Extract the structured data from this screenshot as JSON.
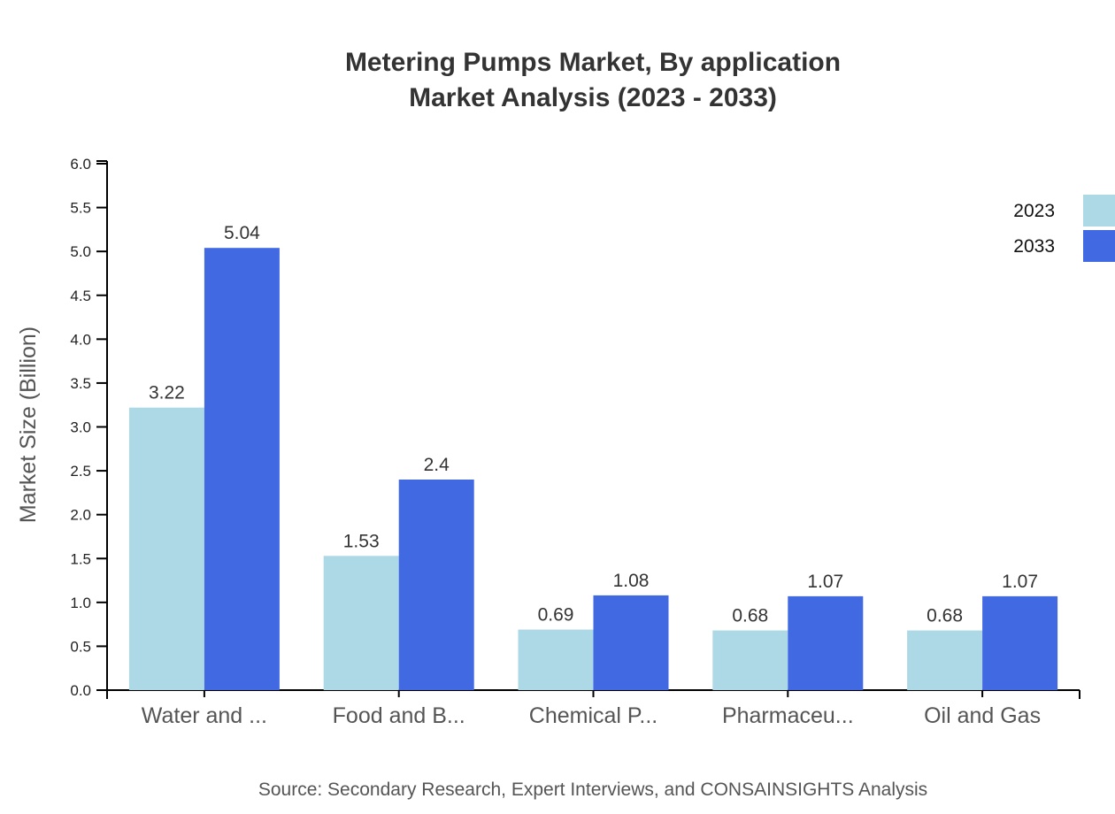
{
  "chart_data": {
    "type": "bar",
    "title": "Metering Pumps Market, By application",
    "subtitle": "Market Analysis (2023 - 2033)",
    "xlabel": "",
    "ylabel": "Market Size (Billion)",
    "ylim": [
      0,
      6.0
    ],
    "yticks": [
      "0.0",
      "0.5",
      "1.0",
      "1.5",
      "2.0",
      "2.5",
      "3.0",
      "3.5",
      "4.0",
      "4.5",
      "5.0",
      "5.5",
      "6.0"
    ],
    "categories": [
      "Water and ...",
      "Food and B...",
      "Chemical P...",
      "Pharmaceu...",
      "Oil and Gas"
    ],
    "series": [
      {
        "name": "2023",
        "color": "#add8e6",
        "values": [
          3.22,
          1.53,
          0.69,
          0.68,
          0.68
        ],
        "labels": [
          "3.22",
          "1.53",
          "0.69",
          "0.68",
          "0.68"
        ]
      },
      {
        "name": "2033",
        "color": "#4169e1",
        "values": [
          5.04,
          2.4,
          1.08,
          1.07,
          1.07
        ],
        "labels": [
          "5.04",
          "2.4",
          "1.08",
          "1.07",
          "1.07"
        ]
      }
    ],
    "grid": false,
    "legend_position": "top-right",
    "source": "Source: Secondary Research, Expert Interviews, and CONSAINSIGHTS Analysis"
  }
}
